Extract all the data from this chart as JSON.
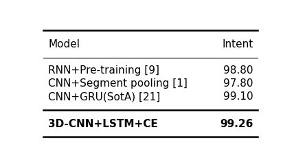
{
  "col_headers": [
    "Model",
    "Intent"
  ],
  "rows": [
    [
      "RNN+Pre-training [9]",
      "98.80"
    ],
    [
      "CNN+Segment pooling [1]",
      "97.80"
    ],
    [
      "CNN+GRU(SotA) [21]",
      "99.10"
    ]
  ],
  "last_row": [
    "3D-CNN+LSTM+CE",
    "99.26"
  ],
  "bg_color": "#ffffff",
  "text_color": "#000000",
  "font_size": 11
}
